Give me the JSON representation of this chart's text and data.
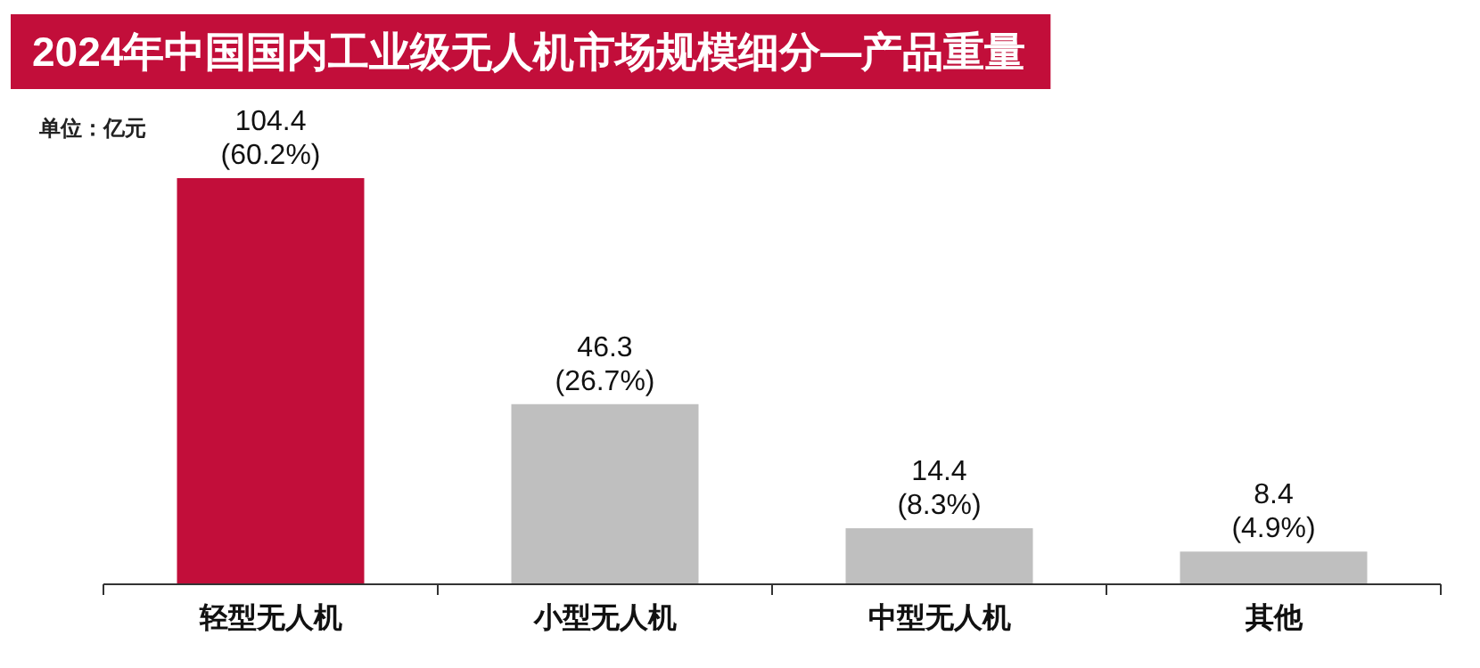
{
  "chart_data": {
    "type": "bar",
    "title": "2024年中国国内工业级无人机市场规模细分—产品重量",
    "annotations": [
      "单位：亿元"
    ],
    "categories": [
      "轻型无人机",
      "小型无人机",
      "中型无人机",
      "其他"
    ],
    "values": [
      104.4,
      46.3,
      14.4,
      8.4
    ],
    "colors": [
      "#c20e3a",
      "#bfbfbf",
      "#bfbfbf",
      "#bfbfbf"
    ],
    "value_labels": [
      "104.4\n(60.2%)",
      "46.3\n(26.7%)",
      "14.4\n(8.3%)",
      "8.4\n(4.9%)"
    ]
  }
}
